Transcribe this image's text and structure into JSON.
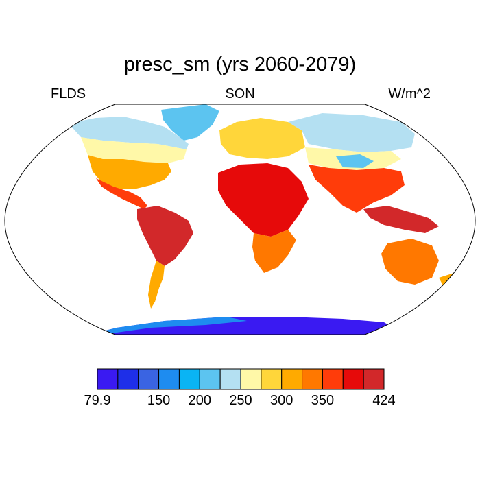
{
  "title": "presc_sm (yrs 2060-2079)",
  "left_label": "FLDS",
  "center_label": "SON",
  "right_label": "W/m^2",
  "colorbar": {
    "colors": [
      "#3a1af2",
      "#1e2fe8",
      "#3a64e2",
      "#1e8cf0",
      "#0ab4f4",
      "#5cc4f0",
      "#b4e0f2",
      "#fff8a8",
      "#ffd63a",
      "#ffaa00",
      "#ff7800",
      "#ff3c0a",
      "#e60a0a",
      "#d2282a"
    ],
    "labels": [
      "79.9",
      "150",
      "200",
      "250",
      "300",
      "350",
      "424"
    ]
  },
  "regions": [
    {
      "name": "ocean-background",
      "color": "#ffffff"
    },
    {
      "name": "greenland",
      "color": "#5cc4f0"
    },
    {
      "name": "arctic-canada",
      "color": "#b4e0f2"
    },
    {
      "name": "north-america-mid",
      "color": "#fff8a8"
    },
    {
      "name": "north-america-south",
      "color": "#ffaa00"
    },
    {
      "name": "central-america",
      "color": "#ff3c0a"
    },
    {
      "name": "south-america",
      "color": "#d2282a"
    },
    {
      "name": "patagonia",
      "color": "#ffaa00"
    },
    {
      "name": "europe",
      "color": "#ffd63a"
    },
    {
      "name": "siberia",
      "color": "#b4e0f2"
    },
    {
      "name": "central-asia",
      "color": "#fff8a8"
    },
    {
      "name": "tibet",
      "color": "#5cc4f0"
    },
    {
      "name": "south-asia",
      "color": "#ff3c0a"
    },
    {
      "name": "africa",
      "color": "#e60a0a"
    },
    {
      "name": "southern-africa",
      "color": "#ff7800"
    },
    {
      "name": "australia",
      "color": "#ff7800"
    },
    {
      "name": "indonesia",
      "color": "#d2282a"
    },
    {
      "name": "antarctica",
      "color": "#3a1af2"
    }
  ]
}
